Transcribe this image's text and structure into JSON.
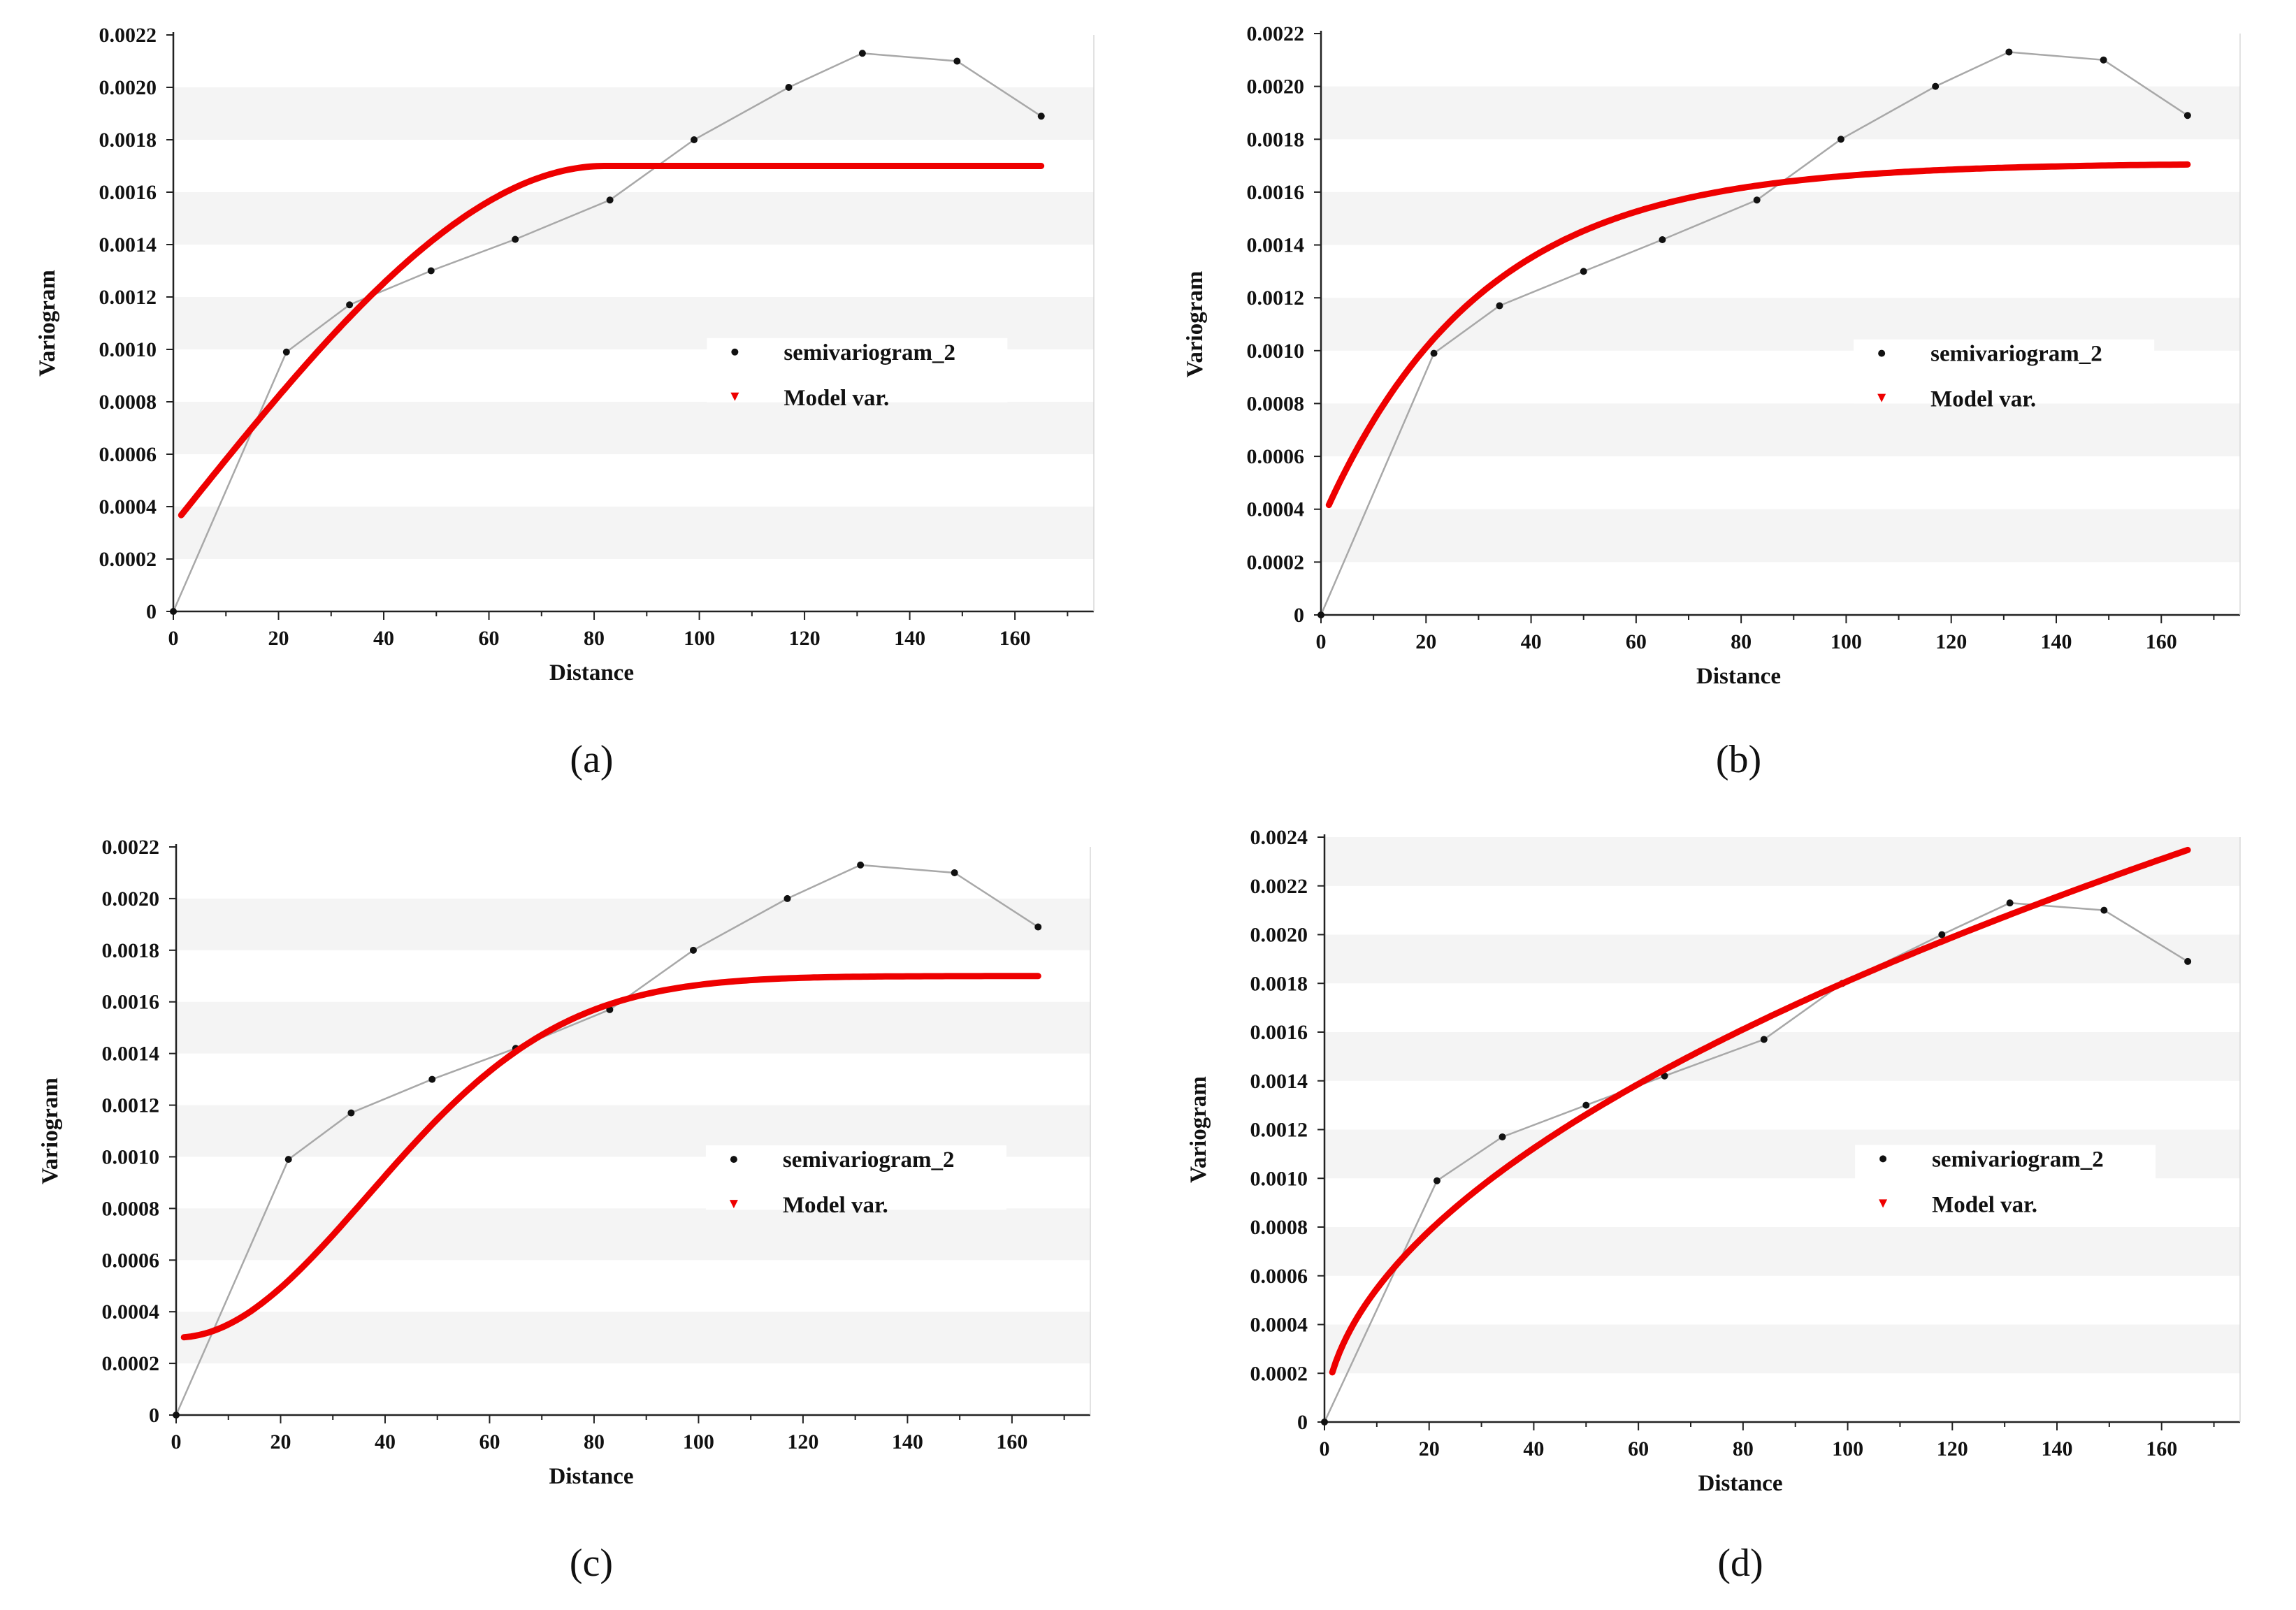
{
  "figure": {
    "panel_labels": [
      "(a)",
      "(b)",
      "(c)",
      "(d)"
    ]
  },
  "colors": {
    "experimental": "#111111",
    "experimental_line": "#a8a8a8",
    "model": "#ee0000",
    "band": "#f4f4f4",
    "axis": "#222222"
  },
  "chart_data": [
    {
      "type": "line",
      "panel": "(a)",
      "xlabel": "Distance",
      "ylabel": "Variogram",
      "xlim": [
        0,
        175
      ],
      "ylim": [
        0,
        0.0022
      ],
      "xticks": [
        "0",
        "20",
        "40",
        "60",
        "80",
        "100",
        "120",
        "140",
        "160"
      ],
      "yticks": [
        "0",
        "0.0002",
        "0.0004",
        "0.0006",
        "0.0008",
        "0.0010",
        "0.0012",
        "0.0014",
        "0.0016",
        "0.0018",
        "0.0020",
        "0.0022"
      ],
      "legend": [
        "semivariogram_2",
        "Model var."
      ],
      "series": [
        {
          "name": "semivariogram_2",
          "x": [
            0,
            21.5,
            33.5,
            49,
            65,
            83,
            99,
            117,
            131,
            149,
            165
          ],
          "y": [
            0,
            0.00099,
            0.00117,
            0.0013,
            0.00142,
            0.00157,
            0.0018,
            0.002,
            0.00213,
            0.0021,
            0.00189
          ]
        },
        {
          "name": "Model var.",
          "model": "spherical",
          "nugget": 0.00033,
          "sill": 0.0017,
          "range": 82,
          "x_start": 1.5,
          "x_end": 165
        }
      ]
    },
    {
      "type": "line",
      "panel": "(b)",
      "xlabel": "Distance",
      "ylabel": "Variogram",
      "xlim": [
        0,
        175
      ],
      "ylim": [
        0,
        0.0022
      ],
      "xticks": [
        "0",
        "20",
        "40",
        "60",
        "80",
        "100",
        "120",
        "140",
        "160"
      ],
      "yticks": [
        "0",
        "0.0002",
        "0.0004",
        "0.0006",
        "0.0008",
        "0.0010",
        "0.0012",
        "0.0014",
        "0.0016",
        "0.0018",
        "0.0020",
        "0.0022"
      ],
      "legend": [
        "semivariogram_2",
        "Model var."
      ],
      "series": [
        {
          "name": "semivariogram_2",
          "x": [
            0,
            21.5,
            34,
            50,
            65,
            83,
            99,
            117,
            131,
            149,
            165
          ],
          "y": [
            0,
            0.00099,
            0.00117,
            0.0013,
            0.00142,
            0.00157,
            0.0018,
            0.002,
            0.00213,
            0.0021,
            0.00189
          ]
        },
        {
          "name": "Model var.",
          "model": "exponential",
          "nugget": 0.00035,
          "sill": 0.00171,
          "range": 90,
          "x_start": 1.5,
          "x_end": 165
        }
      ]
    },
    {
      "type": "line",
      "panel": "(c)",
      "xlabel": "Distance",
      "ylabel": "Variogram",
      "xlim": [
        0,
        175
      ],
      "ylim": [
        0,
        0.0022
      ],
      "xticks": [
        "0",
        "20",
        "40",
        "60",
        "80",
        "100",
        "120",
        "140",
        "160"
      ],
      "yticks": [
        "0",
        "0.0002",
        "0.0004",
        "0.0006",
        "0.0008",
        "0.0010",
        "0.0012",
        "0.0014",
        "0.0016",
        "0.0018",
        "0.0020",
        "0.0022"
      ],
      "legend": [
        "semivariogram_2",
        "Model var."
      ],
      "series": [
        {
          "name": "semivariogram_2",
          "x": [
            0,
            21.5,
            33.5,
            49,
            65,
            83,
            99,
            117,
            131,
            149,
            165
          ],
          "y": [
            0,
            0.00099,
            0.00117,
            0.0013,
            0.00142,
            0.00157,
            0.0018,
            0.002,
            0.00213,
            0.0021,
            0.00189
          ]
        },
        {
          "name": "Model var.",
          "model": "gaussian",
          "nugget": 0.0003,
          "sill": 0.0017,
          "range": 90,
          "x_start": 1.5,
          "x_end": 165
        }
      ]
    },
    {
      "type": "line",
      "panel": "(d)",
      "xlabel": "Distance",
      "ylabel": "Variogram",
      "xlim": [
        0,
        175
      ],
      "ylim": [
        0,
        0.0024
      ],
      "xticks": [
        "0",
        "20",
        "40",
        "60",
        "80",
        "100",
        "120",
        "140",
        "160"
      ],
      "yticks": [
        "0",
        "0.0002",
        "0.0004",
        "0.0006",
        "0.0008",
        "0.0010",
        "0.0012",
        "0.0014",
        "0.0016",
        "0.0018",
        "0.0020",
        "0.0022",
        "0.0024"
      ],
      "legend": [
        "semivariogram_2",
        "Model var."
      ],
      "series": [
        {
          "name": "semivariogram_2",
          "x": [
            0,
            21.5,
            34,
            50,
            65,
            84,
            99,
            118,
            131,
            149,
            165
          ],
          "y": [
            0,
            0.00099,
            0.00117,
            0.0013,
            0.00142,
            0.00157,
            0.0018,
            0.002,
            0.00213,
            0.0021,
            0.00189
          ]
        },
        {
          "name": "Model var.",
          "model": "power",
          "coefficient": 0.000165,
          "exponent": 0.52,
          "x_start": 1.5,
          "x_end": 165
        }
      ]
    }
  ]
}
